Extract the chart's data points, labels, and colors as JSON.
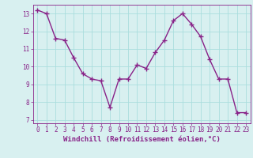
{
  "x": [
    0,
    1,
    2,
    3,
    4,
    5,
    6,
    7,
    8,
    9,
    10,
    11,
    12,
    13,
    14,
    15,
    16,
    17,
    18,
    19,
    20,
    21,
    22,
    23
  ],
  "y": [
    13.2,
    13.0,
    11.6,
    11.5,
    10.5,
    9.6,
    9.3,
    9.2,
    7.7,
    9.3,
    9.3,
    10.1,
    9.9,
    10.8,
    11.5,
    12.6,
    13.0,
    12.4,
    11.7,
    10.4,
    9.3,
    9.3,
    7.4,
    7.4
  ],
  "line_color": "#882288",
  "marker": "+",
  "marker_size": 4,
  "linewidth": 1.0,
  "bg_color": "#d8f0f0",
  "grid_color": "#aadddd",
  "xlabel": "Windchill (Refroidissement éolien,°C)",
  "xlabel_fontsize": 6.5,
  "xlabel_color": "#882288",
  "ytick_labels": [
    7,
    8,
    9,
    10,
    11,
    12,
    13
  ],
  "xtick_labels": [
    0,
    1,
    2,
    3,
    4,
    5,
    6,
    7,
    8,
    9,
    10,
    11,
    12,
    13,
    14,
    15,
    16,
    17,
    18,
    19,
    20,
    21,
    22,
    23
  ],
  "ylim": [
    6.8,
    13.5
  ],
  "xlim": [
    -0.5,
    23.5
  ],
  "tick_color": "#882288",
  "tick_fontsize": 5.5
}
